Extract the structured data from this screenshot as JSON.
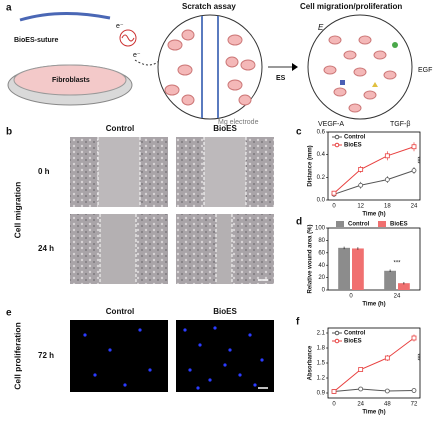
{
  "labels": {
    "a": "a",
    "b": "b",
    "c": "c",
    "d": "d",
    "e": "e",
    "f": "f"
  },
  "panel_a": {
    "suture": "BioES-suture",
    "dish": "Fibroblasts",
    "electron_1": "e⁻",
    "electron_2": "e⁻",
    "scratch": "Scratch assay",
    "electrode": "Mg electrode",
    "stimulus": "ES",
    "result": "Cell migration/proliferation",
    "field": "E",
    "factor_1": "EGF",
    "factor_2": "VEGF-A",
    "factor_3": "TGF-β"
  },
  "panel_b": {
    "col_1": "Control",
    "col_2": "BioES",
    "row_1": "0 h",
    "row_2": "24 h",
    "side": "Cell migration"
  },
  "panel_e": {
    "col_1": "Control",
    "col_2": "BioES",
    "row_1": "72 h",
    "side": "Cell proliferation"
  },
  "chart_data": [
    {
      "type": "line",
      "categories": [
        "0",
        "12",
        "18",
        "24"
      ],
      "xlabel": "Time (h)",
      "ylabel": "Distance (mm)",
      "ylim": [
        0,
        0.6
      ],
      "yticks": [
        {
          "value": 0,
          "label": "0.0"
        },
        {
          "value": 0.2,
          "label": "0.2"
        },
        {
          "value": 0.4,
          "label": "0.4"
        },
        {
          "value": 0.6,
          "label": "0.6"
        }
      ],
      "series": [
        {
          "name": "Control",
          "color": "#555555",
          "values": [
            0.05,
            0.13,
            0.18,
            0.26
          ],
          "errors": [
            0.02,
            0.03,
            0.03,
            0.03
          ]
        },
        {
          "name": "BioES",
          "color": "#e8403f",
          "values": [
            0.06,
            0.27,
            0.39,
            0.47
          ],
          "errors": [
            0.02,
            0.03,
            0.04,
            0.04
          ]
        }
      ],
      "annotation": "***",
      "legend": "upper left"
    },
    {
      "type": "bar",
      "categories": [
        "0",
        "24"
      ],
      "xlabel": "Time (h)",
      "ylabel": "Relative wound area (%)",
      "ylim": [
        0,
        100
      ],
      "yticks": [
        0,
        20,
        40,
        60,
        80,
        100
      ],
      "series": [
        {
          "name": "Control",
          "color": "#8c8c8c",
          "values": [
            68,
            31
          ],
          "errors": [
            2,
            2
          ]
        },
        {
          "name": "BioES",
          "color": "#f07070",
          "values": [
            67,
            11
          ],
          "errors": [
            2,
            2
          ]
        }
      ],
      "annotation": "***",
      "legend": "upper center"
    },
    {
      "type": "line",
      "categories": [
        "0",
        "24",
        "48",
        "72"
      ],
      "xlabel": "Time (h)",
      "ylabel": "Absorbance",
      "ylim": [
        0.8,
        2.2
      ],
      "yticks": [
        {
          "value": 0.9,
          "label": "0.9"
        },
        {
          "value": 1.2,
          "label": "1.2"
        },
        {
          "value": 1.5,
          "label": "1.5"
        },
        {
          "value": 1.8,
          "label": "1.8"
        },
        {
          "value": 2.1,
          "label": "2.1"
        }
      ],
      "series": [
        {
          "name": "Control",
          "color": "#555555",
          "values": [
            0.93,
            0.98,
            0.94,
            0.95
          ],
          "errors": [
            0.02,
            0.03,
            0.04,
            0.03
          ]
        },
        {
          "name": "BioES",
          "color": "#e8403f",
          "values": [
            0.93,
            1.37,
            1.6,
            2.0
          ],
          "errors": [
            0.02,
            0.04,
            0.06,
            0.07
          ]
        }
      ],
      "annotation": "***",
      "legend": "upper left"
    }
  ]
}
